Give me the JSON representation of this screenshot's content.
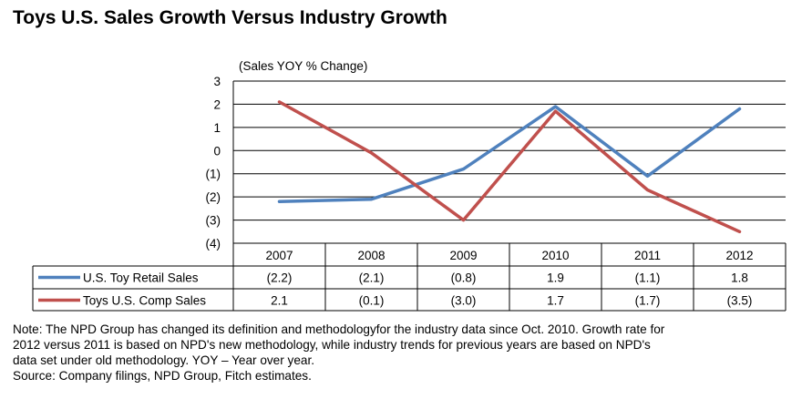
{
  "title": "Toys U.S. Sales Growth Versus Industry Growth",
  "chart_data": {
    "type": "line",
    "ylabel": "(Sales YOY % Change)",
    "categories": [
      "2007",
      "2008",
      "2009",
      "2010",
      "2011",
      "2012"
    ],
    "ylim": [
      -4,
      3
    ],
    "yticks": [
      3,
      2,
      1,
      0,
      -1,
      -2,
      -3,
      -4
    ],
    "ytick_labels": [
      "3",
      "2",
      "1",
      "0",
      "(1)",
      "(2)",
      "(3)",
      "(4)"
    ],
    "grid": true,
    "legend": "data-table-left",
    "series": [
      {
        "name": "U.S. Toy Retail Sales",
        "color": "#4f81bd",
        "values": [
          -2.2,
          -2.1,
          -0.8,
          1.9,
          -1.1,
          1.8
        ],
        "labels": [
          "(2.2)",
          "(2.1)",
          "(0.8)",
          "1.9",
          "(1.1)",
          "1.8"
        ]
      },
      {
        "name": "Toys U.S. Comp Sales",
        "color": "#c0504d",
        "values": [
          2.1,
          -0.1,
          -3.0,
          1.7,
          -1.7,
          -3.5
        ],
        "labels": [
          "2.1",
          "(0.1)",
          "(3.0)",
          "1.7",
          "(1.7)",
          "(3.5)"
        ]
      }
    ]
  },
  "notes": [
    "Note: The NPD Group has changed its definition and methodologyfor the industry data since Oct. 2010. Growth rate for",
    "2012 versus 2011 is based on NPD's new methodology, while industry trends for previous years are based on NPD's",
    "data set under old methodology. YOY – Year over year.",
    "Source: Company filings, NPD Group, Fitch estimates."
  ]
}
